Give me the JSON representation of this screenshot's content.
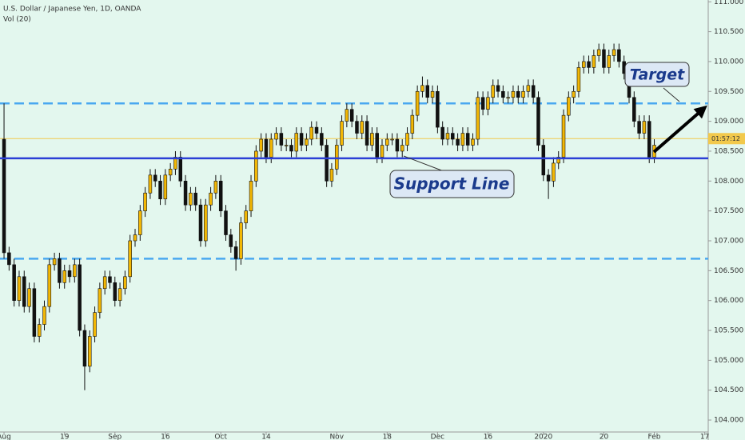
{
  "chart_data": {
    "type": "candlestick",
    "title": "U.S. Dollar / Japanese Yen, 1D, OANDA",
    "subtitle": "Vol (20)",
    "candles": {
      "open": [
        108.7,
        106.8,
        106.6,
        106.0,
        106.4,
        105.9,
        106.2,
        105.4,
        105.6,
        105.9,
        106.6,
        106.7,
        106.3,
        106.5,
        106.4,
        106.6,
        105.5,
        104.9,
        105.4,
        105.8,
        106.2,
        106.4,
        106.3,
        106.0,
        106.2,
        106.4,
        107.0,
        107.1,
        107.5,
        107.8,
        108.1,
        108.0,
        107.7,
        108.1,
        108.2,
        108.4,
        108.0,
        107.6,
        107.8,
        107.6,
        107.0,
        107.6,
        107.8,
        108.0,
        107.5,
        107.1,
        106.9,
        106.7,
        107.3,
        107.5,
        108.0,
        108.5,
        108.7,
        108.4,
        108.7,
        108.8,
        108.6,
        108.6,
        108.5,
        108.8,
        108.6,
        108.7,
        108.9,
        108.8,
        108.6,
        108.0,
        108.2,
        108.6,
        109.0,
        109.2,
        109.0,
        108.8,
        109.0,
        108.6,
        108.8,
        108.4,
        108.6,
        108.7,
        108.7,
        108.5,
        108.6,
        108.8,
        109.1,
        109.5,
        109.6,
        109.4,
        109.5,
        108.9,
        108.7,
        108.8,
        108.7,
        108.6,
        108.8,
        108.6,
        108.7,
        109.4,
        109.2,
        109.4,
        109.6,
        109.5,
        109.4,
        109.4,
        109.5,
        109.4,
        109.5,
        109.6,
        109.4,
        108.6,
        108.1,
        108.0,
        108.3,
        108.4,
        109.1,
        109.4,
        109.5,
        109.9,
        110.0,
        109.9,
        110.1,
        110.2,
        109.9,
        110.1,
        110.2,
        110.0,
        109.8,
        109.4,
        109.0,
        108.8,
        109.0,
        108.4
      ],
      "high": [
        109.3,
        106.9,
        106.7,
        106.5,
        106.5,
        106.3,
        106.3,
        105.7,
        106.0,
        106.7,
        106.8,
        106.8,
        106.6,
        106.6,
        106.7,
        106.7,
        105.6,
        105.5,
        105.9,
        106.3,
        106.5,
        106.5,
        106.4,
        106.3,
        106.5,
        107.1,
        107.2,
        107.6,
        107.9,
        108.2,
        108.2,
        108.1,
        108.2,
        108.3,
        108.5,
        108.5,
        108.1,
        107.9,
        107.9,
        107.7,
        107.7,
        107.9,
        108.1,
        108.1,
        107.6,
        107.2,
        107.0,
        107.4,
        107.6,
        108.1,
        108.6,
        108.8,
        108.8,
        108.8,
        108.9,
        108.9,
        108.7,
        108.7,
        108.9,
        108.9,
        108.8,
        109.0,
        109.0,
        108.9,
        108.7,
        108.3,
        108.7,
        109.1,
        109.3,
        109.3,
        109.1,
        109.1,
        109.1,
        108.9,
        108.9,
        108.7,
        108.8,
        108.8,
        108.8,
        108.7,
        108.9,
        109.2,
        109.6,
        109.75,
        109.7,
        109.6,
        109.6,
        109.0,
        108.9,
        108.9,
        108.8,
        108.9,
        108.9,
        108.8,
        109.5,
        109.5,
        109.5,
        109.7,
        109.7,
        109.6,
        109.5,
        109.6,
        109.6,
        109.6,
        109.7,
        109.7,
        109.5,
        108.7,
        108.2,
        108.4,
        108.5,
        109.2,
        109.5,
        109.6,
        110.0,
        110.1,
        110.1,
        110.2,
        110.3,
        110.3,
        110.2,
        110.3,
        110.3,
        110.1,
        109.9,
        109.5,
        109.1,
        109.1,
        109.1,
        108.7
      ],
      "low": [
        106.7,
        106.5,
        105.9,
        105.9,
        105.8,
        105.8,
        105.3,
        105.3,
        105.5,
        105.8,
        106.5,
        106.2,
        106.2,
        106.3,
        106.3,
        105.4,
        104.5,
        104.8,
        105.3,
        105.7,
        106.1,
        106.2,
        105.9,
        105.9,
        106.1,
        106.3,
        106.9,
        107.0,
        107.4,
        107.7,
        107.9,
        107.6,
        107.6,
        108.0,
        108.1,
        107.9,
        107.5,
        107.5,
        107.5,
        106.9,
        106.9,
        107.5,
        107.7,
        107.4,
        107.0,
        106.8,
        106.5,
        106.6,
        107.2,
        107.4,
        107.9,
        108.4,
        108.3,
        108.3,
        108.6,
        108.5,
        108.5,
        108.4,
        108.4,
        108.5,
        108.5,
        108.6,
        108.7,
        108.5,
        107.9,
        107.9,
        108.1,
        108.5,
        108.9,
        108.9,
        108.7,
        108.7,
        108.5,
        108.5,
        108.3,
        108.3,
        108.5,
        108.6,
        108.4,
        108.4,
        108.5,
        108.7,
        109.0,
        109.4,
        109.3,
        109.3,
        108.8,
        108.6,
        108.6,
        108.6,
        108.5,
        108.5,
        108.5,
        108.5,
        108.6,
        109.1,
        109.1,
        109.3,
        109.4,
        109.3,
        109.3,
        109.3,
        109.3,
        109.3,
        109.4,
        109.3,
        108.5,
        108.0,
        107.7,
        107.9,
        108.2,
        108.3,
        109.0,
        109.3,
        109.4,
        109.8,
        109.8,
        109.8,
        110.0,
        109.8,
        109.8,
        110.0,
        109.9,
        109.7,
        109.3,
        108.9,
        108.7,
        108.7,
        108.3,
        108.3
      ],
      "close": [
        106.8,
        106.6,
        106.0,
        106.4,
        105.9,
        106.2,
        105.4,
        105.6,
        105.9,
        106.6,
        106.7,
        106.3,
        106.5,
        106.4,
        106.6,
        105.5,
        104.9,
        105.4,
        105.8,
        106.2,
        106.4,
        106.3,
        106.0,
        106.2,
        106.4,
        107.0,
        107.1,
        107.5,
        107.8,
        108.1,
        108.0,
        107.7,
        108.1,
        108.2,
        108.4,
        108.0,
        107.6,
        107.8,
        107.6,
        107.0,
        107.6,
        107.8,
        108.0,
        107.5,
        107.1,
        106.9,
        106.7,
        107.3,
        107.5,
        108.0,
        108.5,
        108.7,
        108.4,
        108.7,
        108.8,
        108.6,
        108.6,
        108.5,
        108.8,
        108.6,
        108.7,
        108.9,
        108.8,
        108.6,
        108.0,
        108.2,
        108.6,
        109.0,
        109.2,
        109.0,
        108.8,
        109.0,
        108.6,
        108.8,
        108.4,
        108.6,
        108.7,
        108.7,
        108.5,
        108.6,
        108.8,
        109.1,
        109.5,
        109.6,
        109.4,
        109.5,
        108.9,
        108.7,
        108.8,
        108.7,
        108.6,
        108.8,
        108.6,
        108.7,
        109.4,
        109.2,
        109.4,
        109.6,
        109.5,
        109.4,
        109.4,
        109.5,
        109.4,
        109.5,
        109.6,
        109.4,
        108.6,
        108.1,
        108.0,
        108.3,
        108.4,
        109.1,
        109.4,
        109.5,
        109.9,
        110.0,
        109.9,
        110.1,
        110.2,
        109.9,
        110.1,
        110.2,
        110.0,
        109.8,
        109.4,
        109.0,
        108.8,
        109.0,
        108.4,
        108.6
      ]
    },
    "up_color": "#f2b705",
    "down_color": "#111111",
    "xlim": [
      -0.8,
      139.7
    ],
    "xticks": [
      {
        "value": 0,
        "label": "Aug"
      },
      {
        "value": 12,
        "label": "19"
      },
      {
        "value": 22,
        "label": "Sep"
      },
      {
        "value": 32,
        "label": "16"
      },
      {
        "value": 43,
        "label": "Oct"
      },
      {
        "value": 52,
        "label": "14"
      },
      {
        "value": 66,
        "label": "Nov"
      },
      {
        "value": 76,
        "label": "18"
      },
      {
        "value": 86,
        "label": "Dec"
      },
      {
        "value": 96,
        "label": "16"
      },
      {
        "value": 107,
        "label": "2020"
      },
      {
        "value": 119,
        "label": "20"
      },
      {
        "value": 129,
        "label": "Feb"
      },
      {
        "value": 139,
        "label": "17"
      }
    ],
    "ylim": [
      103.8,
      111.03
    ],
    "yticks": [
      {
        "value": 104,
        "label": "104.000"
      },
      {
        "value": 104.5,
        "label": "104.500"
      },
      {
        "value": 105,
        "label": "105.000"
      },
      {
        "value": 105.5,
        "label": "105.500"
      },
      {
        "value": 106,
        "label": "106.000"
      },
      {
        "value": 106.5,
        "label": "106.500"
      },
      {
        "value": 107,
        "label": "107.000"
      },
      {
        "value": 107.5,
        "label": "107.500"
      },
      {
        "value": 108,
        "label": "108.000"
      },
      {
        "value": 108.5,
        "label": "108.500"
      },
      {
        "value": 109,
        "label": "109.000"
      },
      {
        "value": 109.5,
        "label": "109.500"
      },
      {
        "value": 110,
        "label": "110.000"
      },
      {
        "value": 110.5,
        "label": "110.500"
      },
      {
        "value": 111,
        "label": "111.000"
      }
    ],
    "support_level": 108.38,
    "support_color": "#2b3fd6",
    "upper_level": 109.3,
    "lower_level": 106.7,
    "level_color": "#4aa8f0",
    "last_price": 108.71,
    "last_price_color": "#f2c94c",
    "countdown": "01:57:12",
    "annotations": {
      "target": "Target",
      "support": "Support Line"
    }
  }
}
